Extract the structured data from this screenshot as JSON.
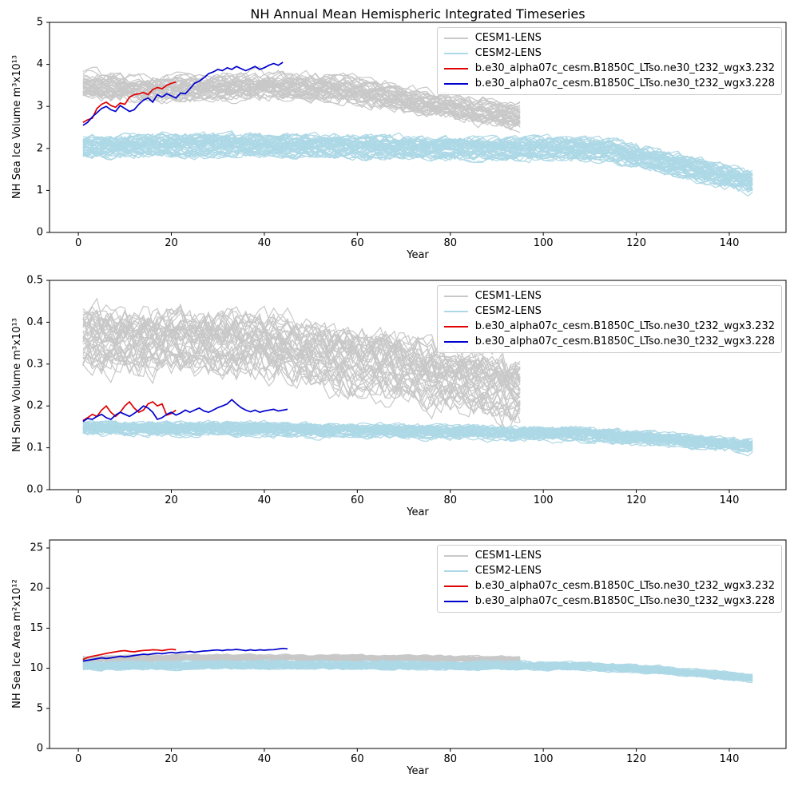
{
  "legend": {
    "items": [
      {
        "label": "CESM1-LENS",
        "color": "#c8c8c8"
      },
      {
        "label": "CESM2-LENS",
        "color": "#add8e6"
      },
      {
        "label": "b.e30_alpha07c_cesm.B1850C_LTso.ne30_t232_wgx3.232",
        "color": "#e00000"
      },
      {
        "label": "b.e30_alpha07c_cesm.B1850C_LTso.ne30_t232_wgx3.228",
        "color": "#0000cd"
      }
    ]
  },
  "chart_data": {
    "type": "line",
    "title": "NH Annual Mean Hemispheric Integrated Timeseries",
    "xlabel": "Year",
    "xlim": [
      -6.2,
      152.2
    ],
    "xticks": [
      0,
      20,
      40,
      60,
      80,
      100,
      120,
      140
    ],
    "xtick_labels": [
      "0",
      "20",
      "40",
      "60",
      "80",
      "100",
      "120",
      "140"
    ],
    "legend_position": "upper right",
    "grid": false,
    "panels": [
      {
        "ylabel": "NH Sea Ice Volume m³x10¹³",
        "ylim": [
          0,
          5
        ],
        "yticks": [
          0,
          1,
          2,
          3,
          4,
          5
        ],
        "ytick_labels": [
          "0",
          "1",
          "2",
          "3",
          "4",
          "5"
        ],
        "ensembles": [
          {
            "name": "CESM1-LENS",
            "color": "#c8c8c8",
            "members": 40,
            "x_start": 1,
            "x_end": 95,
            "mean": [
              [
                1,
                3.5
              ],
              [
                15,
                3.42
              ],
              [
                25,
                3.45
              ],
              [
                40,
                3.5
              ],
              [
                55,
                3.45
              ],
              [
                70,
                3.2
              ],
              [
                85,
                2.9
              ],
              [
                95,
                2.75
              ]
            ],
            "spread": 0.26,
            "noise": 0.12
          },
          {
            "name": "CESM2-LENS",
            "color": "#add8e6",
            "members": 50,
            "x_start": 1,
            "x_end": 145,
            "mean": [
              [
                1,
                2.05
              ],
              [
                30,
                2.1
              ],
              [
                60,
                2.05
              ],
              [
                90,
                2.0
              ],
              [
                105,
                2.0
              ],
              [
                115,
                1.95
              ],
              [
                125,
                1.7
              ],
              [
                135,
                1.45
              ],
              [
                145,
                1.2
              ]
            ],
            "spread": 0.2,
            "noise": 0.1
          }
        ],
        "series": [
          {
            "name": "b.e30_alpha07c_cesm.B1850C_LTso.ne30_t232_wgx3.232",
            "color": "#e00000",
            "x_start": 1,
            "values": [
              2.62,
              2.68,
              2.72,
              2.95,
              3.05,
              3.1,
              3.02,
              2.98,
              3.08,
              3.05,
              3.22,
              3.28,
              3.3,
              3.33,
              3.28,
              3.4,
              3.45,
              3.42,
              3.5,
              3.55,
              3.58
            ]
          },
          {
            "name": "b.e30_alpha07c_cesm.B1850C_LTso.ne30_t232_wgx3.228",
            "color": "#0000cd",
            "x_start": 1,
            "values": [
              2.55,
              2.62,
              2.75,
              2.85,
              2.95,
              3.0,
              2.92,
              2.88,
              3.02,
              2.95,
              2.88,
              2.92,
              3.05,
              3.15,
              3.2,
              3.1,
              3.28,
              3.22,
              3.3,
              3.25,
              3.2,
              3.32,
              3.3,
              3.42,
              3.55,
              3.6,
              3.68,
              3.78,
              3.82,
              3.88,
              3.85,
              3.92,
              3.88,
              3.95,
              3.9,
              3.85,
              3.9,
              3.95,
              3.88,
              3.92,
              3.98,
              4.02,
              3.98,
              4.05
            ]
          }
        ]
      },
      {
        "ylabel": "NH Snow Volume m³x10¹³",
        "ylim": [
          0,
          0.5
        ],
        "yticks": [
          0,
          0.1,
          0.2,
          0.3,
          0.4,
          0.5
        ],
        "ytick_labels": [
          "0.0",
          "0.1",
          "0.2",
          "0.3",
          "0.4",
          "0.5"
        ],
        "ensembles": [
          {
            "name": "CESM1-LENS",
            "color": "#c8c8c8",
            "members": 40,
            "x_start": 1,
            "x_end": 95,
            "mean": [
              [
                1,
                0.36
              ],
              [
                20,
                0.355
              ],
              [
                35,
                0.35
              ],
              [
                50,
                0.325
              ],
              [
                65,
                0.3
              ],
              [
                80,
                0.265
              ],
              [
                95,
                0.235
              ]
            ],
            "spread": 0.06,
            "noise": 0.032
          },
          {
            "name": "CESM2-LENS",
            "color": "#add8e6",
            "members": 50,
            "x_start": 1,
            "x_end": 145,
            "mean": [
              [
                1,
                0.146
              ],
              [
                30,
                0.145
              ],
              [
                60,
                0.14
              ],
              [
                90,
                0.135
              ],
              [
                110,
                0.13
              ],
              [
                125,
                0.12
              ],
              [
                145,
                0.103
              ]
            ],
            "spread": 0.011,
            "noise": 0.008
          }
        ],
        "series": [
          {
            "name": "b.e30_alpha07c_cesm.B1850C_LTso.ne30_t232_wgx3.232",
            "color": "#e00000",
            "x_start": 1,
            "values": [
              0.165,
              0.172,
              0.18,
              0.175,
              0.19,
              0.2,
              0.185,
              0.175,
              0.185,
              0.2,
              0.21,
              0.195,
              0.185,
              0.19,
              0.205,
              0.21,
              0.2,
              0.205,
              0.178,
              0.182,
              0.19
            ]
          },
          {
            "name": "b.e30_alpha07c_cesm.B1850C_LTso.ne30_t232_wgx3.228",
            "color": "#0000cd",
            "x_start": 1,
            "values": [
              0.163,
              0.17,
              0.168,
              0.175,
              0.18,
              0.172,
              0.168,
              0.178,
              0.185,
              0.18,
              0.175,
              0.182,
              0.19,
              0.2,
              0.195,
              0.185,
              0.168,
              0.172,
              0.18,
              0.185,
              0.178,
              0.183,
              0.19,
              0.185,
              0.19,
              0.195,
              0.188,
              0.185,
              0.19,
              0.196,
              0.2,
              0.205,
              0.215,
              0.205,
              0.196,
              0.19,
              0.186,
              0.19,
              0.185,
              0.188,
              0.19,
              0.192,
              0.188,
              0.19,
              0.192
            ]
          }
        ]
      },
      {
        "ylabel": "NH Sea Ice Area m²x10¹²",
        "ylim": [
          0,
          26
        ],
        "yticks": [
          0,
          5,
          10,
          15,
          20,
          25
        ],
        "ytick_labels": [
          "0",
          "5",
          "10",
          "15",
          "20",
          "25"
        ],
        "ensembles": [
          {
            "name": "CESM1-LENS",
            "color": "#c8c8c8",
            "members": 40,
            "x_start": 1,
            "x_end": 95,
            "mean": [
              [
                1,
                11.1
              ],
              [
                25,
                11.3
              ],
              [
                55,
                11.25
              ],
              [
                80,
                11.15
              ],
              [
                95,
                11.05
              ]
            ],
            "spread": 0.3,
            "noise": 0.17
          },
          {
            "name": "CESM2-LENS",
            "color": "#add8e6",
            "members": 50,
            "x_start": 1,
            "x_end": 145,
            "mean": [
              [
                1,
                10.3
              ],
              [
                30,
                10.45
              ],
              [
                60,
                10.4
              ],
              [
                90,
                10.35
              ],
              [
                110,
                10.25
              ],
              [
                125,
                9.8
              ],
              [
                135,
                9.3
              ],
              [
                145,
                8.8
              ]
            ],
            "spread": 0.35,
            "noise": 0.2
          }
        ],
        "series": [
          {
            "name": "b.e30_alpha07c_cesm.B1850C_LTso.ne30_t232_wgx3.232",
            "color": "#e00000",
            "x_start": 1,
            "values": [
              11.1,
              11.35,
              11.5,
              11.62,
              11.72,
              11.85,
              11.95,
              12.05,
              12.15,
              12.2,
              12.1,
              12.05,
              12.15,
              12.22,
              12.25,
              12.3,
              12.28,
              12.2,
              12.3,
              12.38,
              12.3
            ]
          },
          {
            "name": "b.e30_alpha07c_cesm.B1850C_LTso.ne30_t232_wgx3.228",
            "color": "#0000cd",
            "x_start": 1,
            "values": [
              10.9,
              11.0,
              11.1,
              11.2,
              11.3,
              11.22,
              11.3,
              11.4,
              11.5,
              11.42,
              11.5,
              11.6,
              11.68,
              11.75,
              11.7,
              11.8,
              11.88,
              11.8,
              11.9,
              11.98,
              11.9,
              12.0,
              12.02,
              12.1,
              12.0,
              12.08,
              12.15,
              12.18,
              12.25,
              12.28,
              12.2,
              12.3,
              12.28,
              12.35,
              12.28,
              12.2,
              12.3,
              12.22,
              12.3,
              12.25,
              12.3,
              12.32,
              12.4,
              12.48,
              12.42
            ]
          }
        ]
      }
    ]
  }
}
